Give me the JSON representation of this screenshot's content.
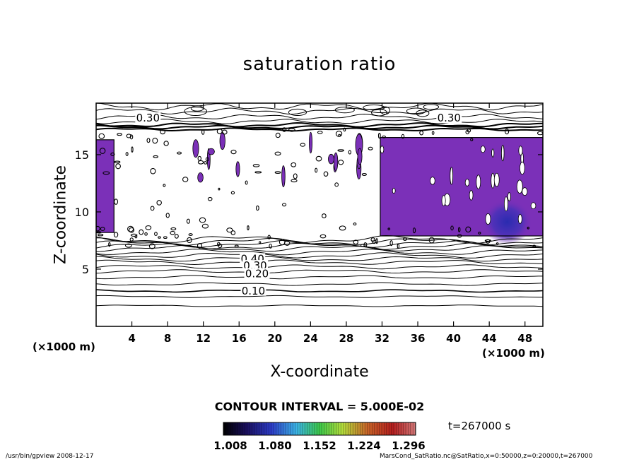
{
  "chart_data": {
    "type": "heatmap",
    "title": "saturation ratio",
    "xlabel": "X-coordinate",
    "ylabel": "Z-coordinate",
    "x_unit_left": "(×1000 m)",
    "x_unit_right": "(×1000 m)",
    "xlim": [
      0,
      50
    ],
    "ylim": [
      0,
      19.5
    ],
    "x_ticks": [
      "4",
      "8",
      "12",
      "16",
      "20",
      "24",
      "28",
      "32",
      "36",
      "40",
      "44",
      "48"
    ],
    "x_tick_values": [
      4,
      8,
      12,
      16,
      20,
      24,
      28,
      32,
      36,
      40,
      44,
      48
    ],
    "y_ticks": [
      "5",
      "10",
      "15"
    ],
    "y_tick_values": [
      5,
      10,
      15
    ],
    "contour_interval": "CONTOUR INTERVAL = 5.000E-02",
    "contour_labels": [
      {
        "text": "0.30",
        "x": 5.8,
        "z": 18.2
      },
      {
        "text": "0.30",
        "x": 39.5,
        "z": 18.2
      },
      {
        "text": "0.40",
        "x": 17.5,
        "z": 5.9
      },
      {
        "text": "0.30",
        "x": 17.8,
        "z": 5.3
      },
      {
        "text": "0.20",
        "x": 18.0,
        "z": 4.6
      },
      {
        "text": "0.10",
        "x": 17.6,
        "z": 3.1
      }
    ],
    "supersaturated_regions": [
      {
        "x": [
          0,
          2
        ],
        "z": [
          8.2,
          16.3
        ],
        "min_value": 1.008
      },
      {
        "x": [
          31.8,
          50
        ],
        "z": [
          7.9,
          16.5
        ],
        "min_value": 1.008
      },
      {
        "x": [
          44,
          48
        ],
        "z": [
          8.0,
          11.0
        ],
        "max_value": 1.08
      }
    ],
    "colorbar": {
      "tick_labels": [
        "1.008",
        "1.080",
        "1.152",
        "1.224",
        "1.296"
      ],
      "range": [
        1.008,
        1.296
      ],
      "colors": [
        "#000000",
        "#1a0f5e",
        "#2d3cc8",
        "#3cb4e6",
        "#3cc84b",
        "#b4dc3c",
        "#c86428",
        "#b41e1e",
        "#d27878"
      ]
    },
    "supersaturation_color": "#7b30b8",
    "deep_color": "#2a2bb0"
  },
  "annotations": {
    "time": "t=267000 s",
    "footer_left": "/usr/bin/gpview   2008-12-17",
    "footer_right": "MarsCond_SatRatio.nc@SatRatio,x=0:50000,z=0:20000,t=267000"
  }
}
